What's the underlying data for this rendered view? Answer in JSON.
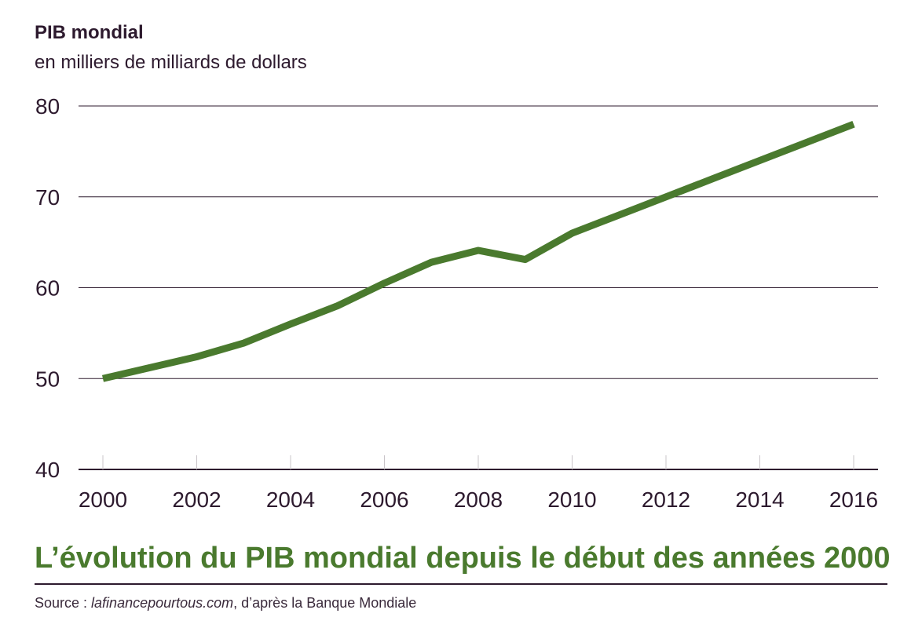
{
  "chart_data": {
    "type": "line",
    "title": "PIB mondial",
    "subtitle": "en milliers de milliards de dollars",
    "x": [
      2000,
      2001,
      2002,
      2003,
      2004,
      2005,
      2006,
      2007,
      2008,
      2009,
      2010,
      2011,
      2012,
      2013,
      2014,
      2015,
      2016
    ],
    "series": [
      {
        "values": [
          50.0,
          51.2,
          52.4,
          53.9,
          56.0,
          58.0,
          60.5,
          62.8,
          64.1,
          63.1,
          66.0,
          68.0,
          70.0,
          72.0,
          74.0,
          76.0,
          78.0
        ]
      }
    ],
    "xlim": [
      2000,
      2016
    ],
    "ylim": [
      40,
      80
    ],
    "y_ticks": [
      40,
      50,
      60,
      70,
      80
    ],
    "x_ticks": [
      2000,
      2002,
      2004,
      2006,
      2008,
      2010,
      2012,
      2014,
      2016
    ],
    "grid": true,
    "line_color": "#4a7a2e",
    "axis_color": "#2d1a2e"
  },
  "caption": "L’évolution du PIB mondial depuis le début des années 2000",
  "source": {
    "prefix": "Source : ",
    "site": "lafinancepourtous.com",
    "suffix": ", d’après la Banque Mondiale"
  }
}
